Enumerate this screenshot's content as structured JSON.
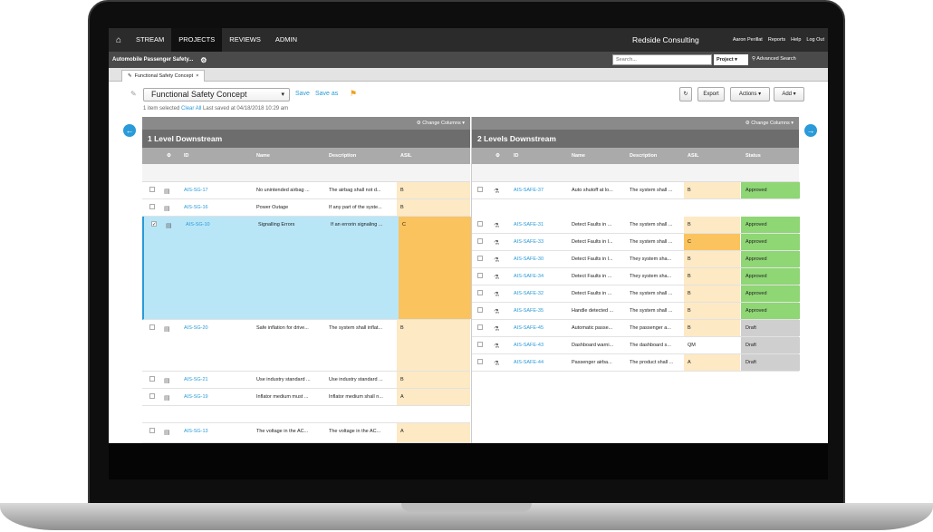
{
  "nav": {
    "items": [
      "STREAM",
      "PROJECTS",
      "REVIEWS",
      "ADMIN"
    ],
    "active": "PROJECTS",
    "brand": "Redside Consulting",
    "links": [
      "Aaron Perillat",
      "Reports",
      "Help",
      "Log Out"
    ]
  },
  "subbar": {
    "project": "Automobile Passenger Safety...",
    "search_placeholder": "Search...",
    "scope": "Project",
    "advanced": "Advanced Search"
  },
  "tab": {
    "label": "Functional Safety Concept"
  },
  "toolbar": {
    "doc_title": "Functional Safety Concept",
    "save": "Save",
    "save_as": "Save as",
    "export": "Export",
    "actions": "Actions",
    "add": "Add"
  },
  "selection": {
    "selected": "1 item selected",
    "clear": "Clear All",
    "saved": "Last saved at 04/18/2018 10:29 am"
  },
  "left": {
    "change_columns": "Change Columns",
    "title": "1 Level Downstream",
    "columns": [
      "ID",
      "Name",
      "Description",
      "ASIL"
    ],
    "rows": [
      {
        "id": "AIS-SG-17",
        "name": "No unintended airbag ...",
        "desc": "The airbag shall not d...",
        "asil": "B"
      },
      {
        "id": "AIS-SG-16",
        "name": "Power Outage",
        "desc": "If any part of the syste...",
        "asil": "B"
      },
      {
        "id": "AIS-SG-10",
        "name": "Signalling Errors",
        "desc": "If an errorin signaling ...",
        "asil": "C"
      },
      {
        "id": "AIS-SG-20",
        "name": "Safe inflation for drive...",
        "desc": "The system shall inflat...",
        "asil": "B"
      },
      {
        "id": "AIS-SG-21",
        "name": "Use industry standard ...",
        "desc": "Use industry standard ...",
        "asil": "B"
      },
      {
        "id": "AIS-SG-19",
        "name": "Inflator medium must ...",
        "desc": "Inflator medium shall n...",
        "asil": "A"
      },
      {
        "id": "AIS-SG-13",
        "name": "The voltage in the AC...",
        "desc": "The voltage in the AC...",
        "asil": "A"
      }
    ]
  },
  "right": {
    "change_columns": "Change Columns",
    "title": "2 Levels Downstream",
    "columns": [
      "ID",
      "Name",
      "Description",
      "ASIL",
      "Status"
    ],
    "rows": [
      {
        "id": "AIS-SAFE-37",
        "name": "Auto shutoff at lo...",
        "desc": "The system shall ...",
        "asil": "B",
        "status": "Approved"
      },
      {
        "id": "AIS-SAFE-31",
        "name": "Detect Faults in ...",
        "desc": "The system shall ...",
        "asil": "B",
        "status": "Approved"
      },
      {
        "id": "AIS-SAFE-33",
        "name": "Detect Faults in l...",
        "desc": "The system shall ...",
        "asil": "C",
        "status": "Approved"
      },
      {
        "id": "AIS-SAFE-30",
        "name": "Detect Faults in l...",
        "desc": "They system sha...",
        "asil": "B",
        "status": "Approved"
      },
      {
        "id": "AIS-SAFE-34",
        "name": "Detect Faults in ...",
        "desc": "They system sha...",
        "asil": "B",
        "status": "Approved"
      },
      {
        "id": "AIS-SAFE-32",
        "name": "Detect Faults in ...",
        "desc": "The system shall ...",
        "asil": "B",
        "status": "Approved"
      },
      {
        "id": "AIS-SAFE-35",
        "name": "Handle detected ...",
        "desc": "The system shall ...",
        "asil": "B",
        "status": "Approved"
      },
      {
        "id": "AIS-SAFE-45",
        "name": "Automatic passe...",
        "desc": "The passenger a...",
        "asil": "B",
        "status": "Draft"
      },
      {
        "id": "AIS-SAFE-43",
        "name": "Dashboard warni...",
        "desc": "The dashboard s...",
        "asil": "QM",
        "status": "Draft"
      },
      {
        "id": "AIS-SAFE-44",
        "name": "Passenger airba...",
        "desc": "The product shall ...",
        "asil": "A",
        "status": "Draft"
      }
    ]
  },
  "colors": {
    "accent": "#2a9ad8",
    "approved": "#8fd675",
    "draft": "#cfcfcf",
    "asil_c": "#fbc35e",
    "selected": "#b9e6f7"
  }
}
